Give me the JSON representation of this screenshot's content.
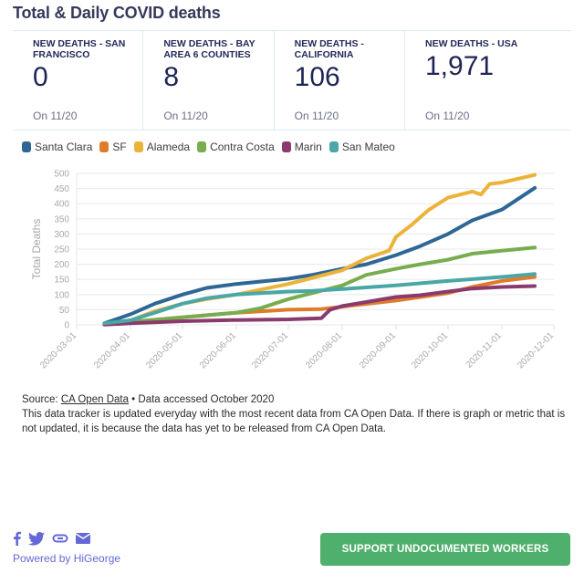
{
  "title": "Total & Daily COVID deaths",
  "stats": [
    {
      "label": "NEW DEATHS - SAN FRANCISCO",
      "value": "0",
      "date": "On 11/20"
    },
    {
      "label": "NEW DEATHS - BAY AREA 6 COUNTIES",
      "value": "8",
      "date": "On 11/20"
    },
    {
      "label": "NEW DEATHS - CALIFORNIA",
      "value": "106",
      "date": "On 11/20"
    },
    {
      "label": "NEW DEATHS - USA",
      "value": "1,971",
      "date": "On 11/20"
    }
  ],
  "chart_data": {
    "type": "line",
    "title": "",
    "xlabel": "",
    "ylabel": "Total Deaths",
    "ylim": [
      0,
      500
    ],
    "yticks": [
      0,
      50,
      100,
      150,
      200,
      250,
      300,
      350,
      400,
      450,
      500
    ],
    "xlim": [
      "2020-03-01",
      "2020-12-01"
    ],
    "xticks": [
      "2020-03-01",
      "2020-04-01",
      "2020-05-01",
      "2020-06-01",
      "2020-07-01",
      "2020-08-01",
      "2020-09-01",
      "2020-10-01",
      "2020-11-01",
      "2020-12-01"
    ],
    "grid": true,
    "legend_position": "top-left",
    "series": [
      {
        "name": "Santa Clara",
        "color": "#2e6795",
        "points": [
          [
            "2020-03-17",
            5
          ],
          [
            "2020-04-01",
            35
          ],
          [
            "2020-04-15",
            70
          ],
          [
            "2020-05-01",
            100
          ],
          [
            "2020-05-15",
            122
          ],
          [
            "2020-06-01",
            135
          ],
          [
            "2020-07-01",
            152
          ],
          [
            "2020-07-15",
            165
          ],
          [
            "2020-08-01",
            185
          ],
          [
            "2020-08-15",
            200
          ],
          [
            "2020-09-01",
            230
          ],
          [
            "2020-09-15",
            260
          ],
          [
            "2020-10-01",
            300
          ],
          [
            "2020-10-15",
            345
          ],
          [
            "2020-11-01",
            380
          ],
          [
            "2020-11-20",
            452
          ]
        ]
      },
      {
        "name": "SF",
        "color": "#e07b2c",
        "points": [
          [
            "2020-03-17",
            2
          ],
          [
            "2020-04-01",
            10
          ],
          [
            "2020-05-01",
            25
          ],
          [
            "2020-06-01",
            40
          ],
          [
            "2020-07-01",
            50
          ],
          [
            "2020-07-20",
            52
          ],
          [
            "2020-08-01",
            60
          ],
          [
            "2020-09-01",
            80
          ],
          [
            "2020-10-01",
            105
          ],
          [
            "2020-10-15",
            125
          ],
          [
            "2020-11-01",
            145
          ],
          [
            "2020-11-20",
            158
          ]
        ]
      },
      {
        "name": "Alameda",
        "color": "#ecb33b",
        "points": [
          [
            "2020-03-17",
            2
          ],
          [
            "2020-04-01",
            15
          ],
          [
            "2020-04-15",
            45
          ],
          [
            "2020-05-01",
            70
          ],
          [
            "2020-05-15",
            85
          ],
          [
            "2020-06-01",
            100
          ],
          [
            "2020-07-01",
            135
          ],
          [
            "2020-07-15",
            155
          ],
          [
            "2020-08-01",
            180
          ],
          [
            "2020-08-15",
            220
          ],
          [
            "2020-08-28",
            245
          ],
          [
            "2020-09-01",
            290
          ],
          [
            "2020-09-10",
            330
          ],
          [
            "2020-09-20",
            380
          ],
          [
            "2020-10-01",
            420
          ],
          [
            "2020-10-15",
            440
          ],
          [
            "2020-10-20",
            430
          ],
          [
            "2020-10-25",
            465
          ],
          [
            "2020-11-01",
            470
          ],
          [
            "2020-11-20",
            495
          ]
        ]
      },
      {
        "name": "Contra Costa",
        "color": "#78ad4f",
        "points": [
          [
            "2020-03-17",
            2
          ],
          [
            "2020-04-01",
            10
          ],
          [
            "2020-05-01",
            25
          ],
          [
            "2020-06-01",
            40
          ],
          [
            "2020-06-15",
            55
          ],
          [
            "2020-07-01",
            85
          ],
          [
            "2020-07-15",
            105
          ],
          [
            "2020-08-01",
            130
          ],
          [
            "2020-08-15",
            165
          ],
          [
            "2020-09-01",
            185
          ],
          [
            "2020-09-15",
            200
          ],
          [
            "2020-10-01",
            215
          ],
          [
            "2020-10-15",
            235
          ],
          [
            "2020-11-01",
            245
          ],
          [
            "2020-11-20",
            255
          ]
        ]
      },
      {
        "name": "Marin",
        "color": "#8b3a6e",
        "points": [
          [
            "2020-03-17",
            1
          ],
          [
            "2020-04-01",
            5
          ],
          [
            "2020-05-01",
            12
          ],
          [
            "2020-06-01",
            16
          ],
          [
            "2020-07-01",
            18
          ],
          [
            "2020-07-20",
            22
          ],
          [
            "2020-07-25",
            50
          ],
          [
            "2020-08-01",
            62
          ],
          [
            "2020-09-01",
            92
          ],
          [
            "2020-09-15",
            98
          ],
          [
            "2020-10-01",
            110
          ],
          [
            "2020-10-15",
            120
          ],
          [
            "2020-11-01",
            125
          ],
          [
            "2020-11-20",
            128
          ]
        ]
      },
      {
        "name": "San Mateo",
        "color": "#4aa7a7",
        "points": [
          [
            "2020-03-17",
            5
          ],
          [
            "2020-04-01",
            15
          ],
          [
            "2020-04-15",
            40
          ],
          [
            "2020-05-01",
            70
          ],
          [
            "2020-05-15",
            88
          ],
          [
            "2020-06-01",
            100
          ],
          [
            "2020-07-01",
            110
          ],
          [
            "2020-07-15",
            112
          ],
          [
            "2020-08-01",
            118
          ],
          [
            "2020-09-01",
            130
          ],
          [
            "2020-10-01",
            145
          ],
          [
            "2020-11-01",
            158
          ],
          [
            "2020-11-20",
            168
          ]
        ]
      }
    ]
  },
  "source": {
    "prefix": "Source: ",
    "link_text": "CA Open Data",
    "suffix": " • Data accessed October 2020",
    "note": "This data tracker is updated everyday with the most recent data from CA Open Data. If there is graph or metric that is not updated, it is because the data has yet to be released from CA Open Data."
  },
  "footer": {
    "share_icons": [
      "facebook-icon",
      "twitter-icon",
      "link-icon",
      "email-icon"
    ],
    "powered_by": "Powered by HiGeorge",
    "cta_label": "SUPPORT UNDOCUMENTED WORKERS",
    "cta_color": "#4faf6c",
    "link_color": "#6468d6"
  }
}
